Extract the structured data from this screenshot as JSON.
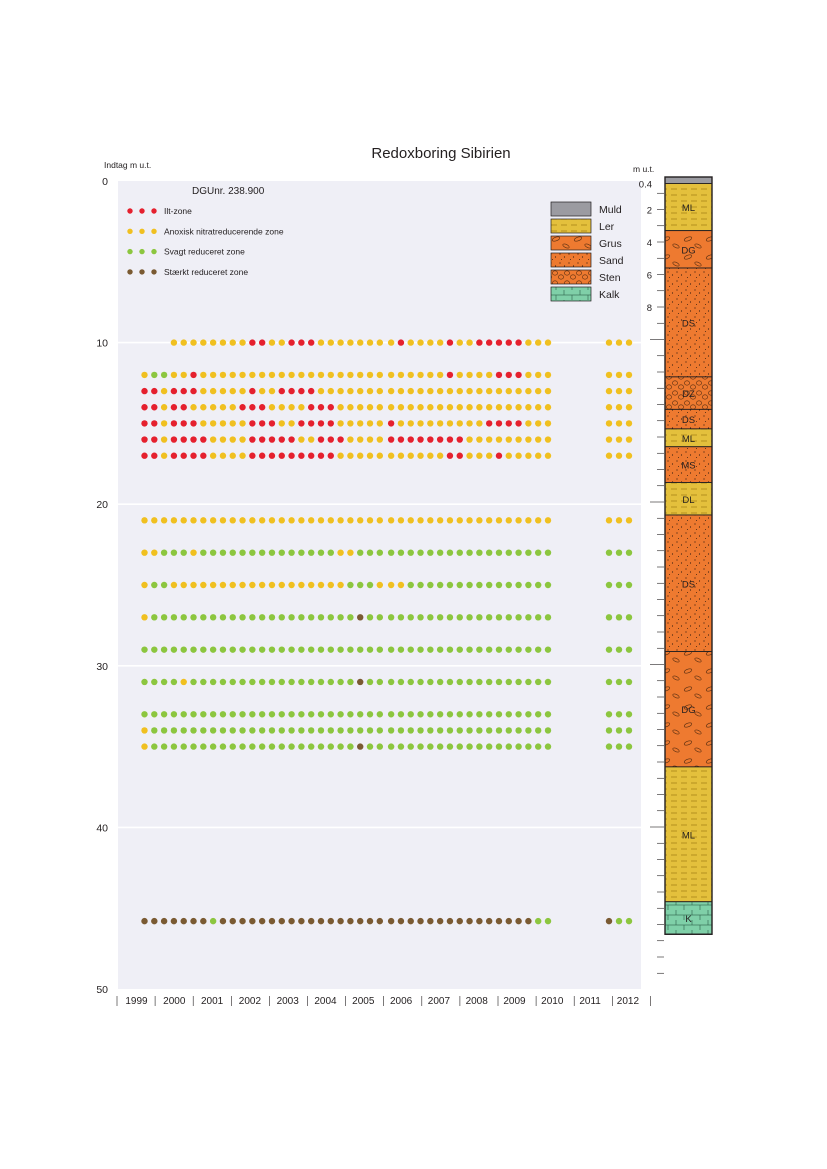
{
  "chart_data": {
    "type": "scatter",
    "title": "Redoxboring Sibirien",
    "ylabel": "Indtag m u.t.",
    "subtitle": "DGUnr. 238.900",
    "ylim": [
      0,
      50
    ],
    "y_ticks": [
      "0",
      "10",
      "20",
      "30",
      "40",
      "50"
    ],
    "x_ticks": [
      "1999",
      "2000",
      "2001",
      "2002",
      "2003",
      "2004",
      "2005",
      "2006",
      "2007",
      "2008",
      "2009",
      "2010",
      "2011",
      "2012"
    ],
    "legend": [
      {
        "label": "Ilt-zone",
        "color": "#e5202e"
      },
      {
        "label": "Anoxisk nitratreducerende zone",
        "color": "#f0c020"
      },
      {
        "label": "Svagt reduceret zone",
        "color": "#8cc63f"
      },
      {
        "label": "Stærkt reduceret zone",
        "color": "#7a5a32"
      }
    ],
    "zone_colors": {
      "R": "#e5202e",
      "Y": "#f0c020",
      "G": "#8cc63f",
      "B": "#7a5a32"
    },
    "sample_rows": [
      {
        "depth": 10,
        "default": "Y",
        "exceptions": {
          "R": [
            11,
            12,
            15,
            16,
            17,
            26,
            31,
            34,
            35,
            36,
            37,
            38
          ]
        },
        "skip_before": 3
      },
      {
        "depth": 12,
        "default": "Y",
        "exceptions": {
          "G": [
            1,
            2
          ],
          "R": [
            5,
            31,
            36,
            37,
            38
          ]
        }
      },
      {
        "depth": 13,
        "default": "Y",
        "exceptions": {
          "R": [
            0,
            1,
            3,
            4,
            5,
            11,
            14,
            15,
            16,
            17
          ]
        }
      },
      {
        "depth": 14,
        "default": "Y",
        "exceptions": {
          "R": [
            0,
            1,
            3,
            4,
            10,
            11,
            12,
            17,
            18,
            19
          ]
        }
      },
      {
        "depth": 15,
        "default": "Y",
        "exceptions": {
          "R": [
            0,
            1,
            3,
            4,
            5,
            11,
            12,
            13,
            16,
            17,
            18,
            19,
            25,
            35,
            36,
            37,
            38
          ]
        }
      },
      {
        "depth": 16,
        "default": "Y",
        "exceptions": {
          "R": [
            0,
            1,
            3,
            4,
            5,
            6,
            11,
            12,
            13,
            14,
            15,
            18,
            19,
            20,
            25,
            26,
            27,
            28,
            29,
            30,
            31,
            32
          ]
        }
      },
      {
        "depth": 17,
        "default": "Y",
        "exceptions": {
          "R": [
            0,
            1,
            3,
            4,
            5,
            6,
            11,
            12,
            13,
            14,
            15,
            16,
            17,
            18,
            19,
            31,
            32,
            36
          ]
        }
      },
      {
        "depth": 21,
        "default": "Y",
        "exceptions": {}
      },
      {
        "depth": 23,
        "default": "G",
        "exceptions": {
          "Y": [
            0,
            1,
            5,
            20,
            21
          ]
        }
      },
      {
        "depth": 25,
        "default": "G",
        "exceptions": {
          "Y": [
            0,
            3,
            4,
            5,
            6,
            7,
            8,
            9,
            10,
            11,
            12,
            13,
            14,
            15,
            16,
            17,
            18,
            19,
            20,
            24,
            25,
            26
          ]
        }
      },
      {
        "depth": 27,
        "default": "G",
        "exceptions": {
          "Y": [
            0
          ],
          "B": [
            22
          ]
        }
      },
      {
        "depth": 29,
        "default": "G",
        "exceptions": {}
      },
      {
        "depth": 31,
        "default": "G",
        "exceptions": {
          "Y": [
            4
          ],
          "B": [
            22
          ]
        }
      },
      {
        "depth": 33,
        "default": "G",
        "exceptions": {}
      },
      {
        "depth": 34,
        "default": "G",
        "exceptions": {
          "Y": [
            0
          ]
        }
      },
      {
        "depth": 35,
        "default": "G",
        "exceptions": {
          "Y": [
            0
          ],
          "B": [
            22
          ]
        }
      },
      {
        "depth": 45.8,
        "default": "B",
        "exceptions": {
          "G": [
            7,
            40,
            41,
            43,
            44
          ]
        }
      }
    ]
  },
  "profile": {
    "header": "m u.t.",
    "ticks": [
      "0.4",
      "2",
      "4",
      "6",
      "8"
    ],
    "legend": [
      {
        "label": "Muld",
        "color": "#9b9ba1"
      },
      {
        "label": "Ler",
        "color": "#e4c03c"
      },
      {
        "label": "Grus",
        "color": "#ee7a30"
      },
      {
        "label": "Sand",
        "color": "#ee7a30"
      },
      {
        "label": "Sten",
        "color": "#ee7a30"
      },
      {
        "label": "Kalk",
        "color": "#7fd0a8"
      }
    ],
    "layers": [
      {
        "from": 0,
        "to": 0.4,
        "type": "Muld",
        "label": ""
      },
      {
        "from": 0.4,
        "to": 3.3,
        "type": "Ler",
        "label": "ML"
      },
      {
        "from": 3.3,
        "to": 5.6,
        "type": "Grus",
        "label": "DG"
      },
      {
        "from": 5.6,
        "to": 12.3,
        "type": "Sand",
        "label": "DS"
      },
      {
        "from": 12.3,
        "to": 14.3,
        "type": "Sten",
        "label": "DZ"
      },
      {
        "from": 14.3,
        "to": 15.5,
        "type": "Sand",
        "label": "DS"
      },
      {
        "from": 15.5,
        "to": 16.6,
        "type": "Ler",
        "label": "ML"
      },
      {
        "from": 16.6,
        "to": 18.8,
        "type": "Sand",
        "label": "MS"
      },
      {
        "from": 18.8,
        "to": 20.8,
        "type": "Ler",
        "label": "DL"
      },
      {
        "from": 20.8,
        "to": 29.2,
        "type": "Sand",
        "label": "DS"
      },
      {
        "from": 29.2,
        "to": 36.3,
        "type": "Grus",
        "label": "DG"
      },
      {
        "from": 36.3,
        "to": 44.6,
        "type": "Ler",
        "label": "ML"
      },
      {
        "from": 44.6,
        "to": 46.6,
        "type": "Kalk",
        "label": "K"
      }
    ]
  }
}
